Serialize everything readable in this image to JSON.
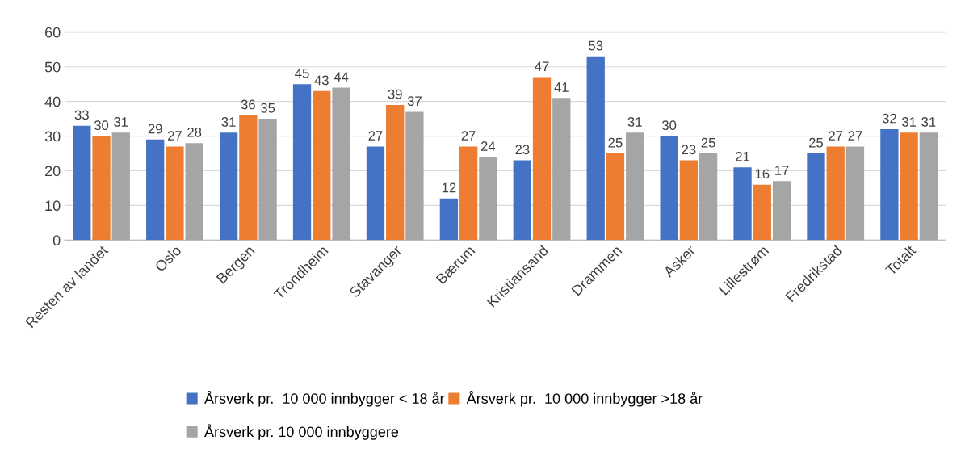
{
  "chart_data": {
    "type": "bar",
    "categories": [
      "Resten av landet",
      "Oslo",
      "Bergen",
      "Trondheim",
      "Stavanger",
      "Bærum",
      "Kristiansand",
      "Drammen",
      "Asker",
      "Lillestrøm",
      "Fredrikstad",
      "Totalt"
    ],
    "series": [
      {
        "name": "Årsverk pr.  10 000 innbygger < 18 år",
        "color": "#4472c4",
        "values": [
          33,
          29,
          31,
          45,
          27,
          12,
          23,
          53,
          30,
          21,
          25,
          32
        ]
      },
      {
        "name": "Årsverk pr.  10 000 innbygger >18 år",
        "color": "#ed7d31",
        "values": [
          30,
          27,
          36,
          43,
          39,
          27,
          47,
          25,
          23,
          16,
          27,
          31
        ]
      },
      {
        "name": "Årsverk pr. 10 000 innbyggere",
        "color": "#a5a5a5",
        "values": [
          31,
          28,
          35,
          44,
          37,
          24,
          41,
          31,
          25,
          17,
          27,
          31
        ]
      }
    ],
    "ylim": [
      0,
      60
    ],
    "yticks": [
      0,
      10,
      20,
      30,
      40,
      50,
      60
    ],
    "grid": "y",
    "legend": "bottom",
    "data_labels": true
  }
}
